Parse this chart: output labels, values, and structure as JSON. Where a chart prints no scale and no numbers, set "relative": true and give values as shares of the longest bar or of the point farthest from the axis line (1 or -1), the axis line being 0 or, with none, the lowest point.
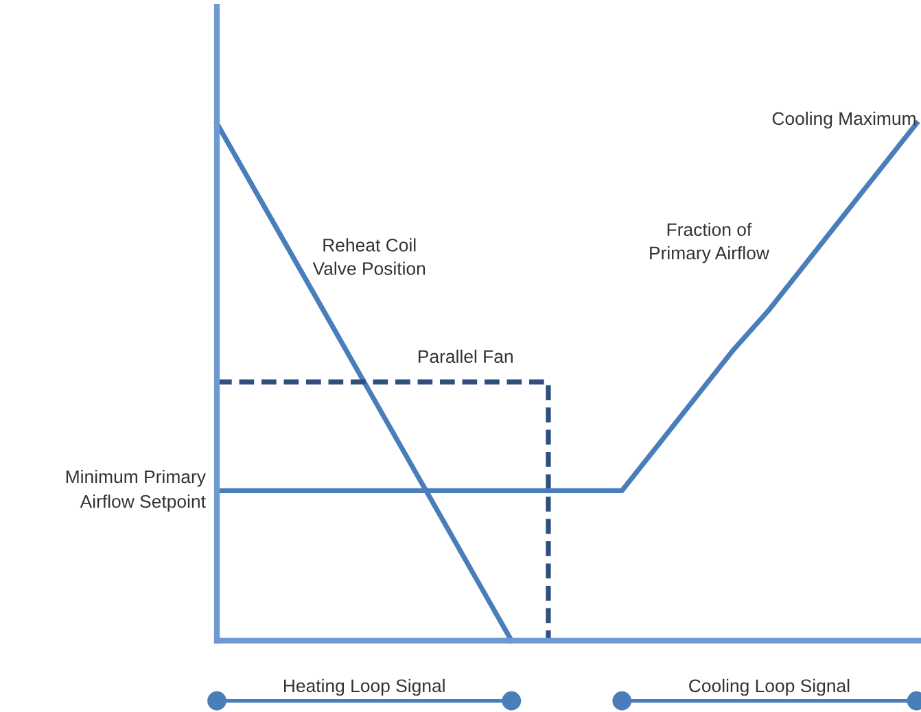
{
  "chart_data": {
    "type": "line",
    "relative": true,
    "legend": false,
    "categories": [
      null,
      null,
      null,
      null,
      null,
      null,
      null,
      null,
      null,
      null,
      null,
      null,
      null,
      null,
      null,
      null,
      null,
      null,
      null,
      null
    ],
    "series": [
      {
        "name": "Reheat Coil\nValve Position",
        "color": "#4a7ebb",
        "line_style": "solid",
        "values": [
          1.0,
          0.875,
          0.75,
          0.625,
          0.5,
          0.375,
          0.25,
          0.125,
          0.0,
          null,
          null,
          null,
          null,
          null,
          null,
          null,
          null,
          null,
          null,
          null
        ]
      },
      {
        "name": "Parallel Fan",
        "type": "step",
        "color": "#2f4f7f",
        "line_style": "dashed",
        "values": [
          0.5,
          0.5,
          0.5,
          0.5,
          0.5,
          0.5,
          0.5,
          0.5,
          0.5,
          0.0,
          null,
          null,
          null,
          null,
          null,
          null,
          null,
          null,
          null,
          null
        ]
      },
      {
        "name": "Fraction of\nPrimary Airflow",
        "color": "#4a7ebb",
        "line_style": "solid",
        "values": [
          0.29,
          0.29,
          0.29,
          0.29,
          0.29,
          0.29,
          0.29,
          0.29,
          0.29,
          0.29,
          0.29,
          0.29,
          0.38,
          0.47,
          0.56,
          0.64,
          0.73,
          0.82,
          0.91,
          1.0
        ]
      }
    ],
    "annotations": [
      "Minimum Primary\nAirflow Setpoint",
      "Cooling Maximum",
      "Heating Loop Signal",
      "Cooling Loop Signal"
    ]
  }
}
